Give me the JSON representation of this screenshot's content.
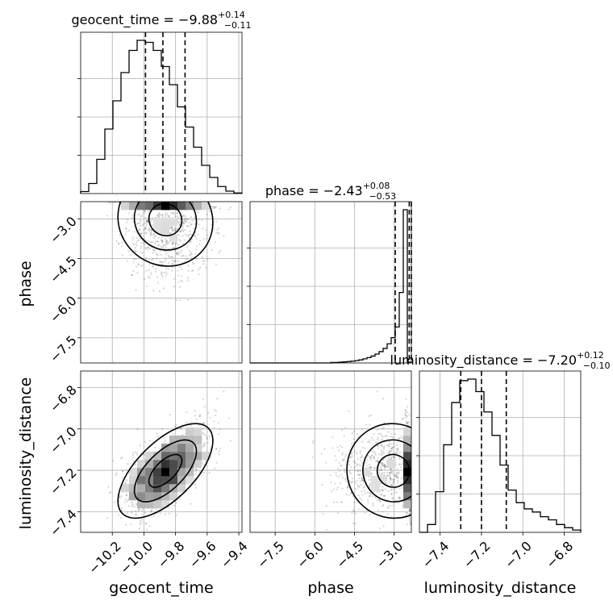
{
  "chart_data": {
    "type": "corner",
    "parameters": [
      {
        "name": "geocent_time",
        "title_prefix": "geocent_time = ",
        "median_text": "−9.88",
        "plus_text": "+0.14",
        "minus_text": "−0.11",
        "median": -9.88,
        "plus": 0.14,
        "minus": 0.11,
        "range": [
          -10.4,
          -9.38
        ],
        "ticks": [
          -10.2,
          -10.0,
          -9.8,
          -9.6,
          -9.4
        ],
        "tick_labels": [
          "−10.2",
          "−10.0",
          "−9.8",
          "−9.6",
          "−9.4"
        ],
        "hist_counts": [
          0.01,
          0.05,
          0.17,
          0.32,
          0.46,
          0.6,
          0.71,
          0.76,
          0.75,
          0.71,
          0.63,
          0.54,
          0.43,
          0.33,
          0.23,
          0.14,
          0.08,
          0.035,
          0.012,
          0.003
        ]
      },
      {
        "name": "phase",
        "title_prefix": "phase = ",
        "median_text": "−2.43",
        "plus_text": "+0.08",
        "minus_text": "−0.53",
        "median": -2.43,
        "plus": 0.08,
        "minus": 0.53,
        "range": [
          -8.45,
          -2.35
        ],
        "ticks": [
          -7.5,
          -6.0,
          -4.5,
          -3.0
        ],
        "tick_labels": [
          "−7.5",
          "−6.0",
          "−4.5",
          "−3.0"
        ],
        "hist_counts": [
          0,
          0,
          0,
          0,
          0,
          0,
          0,
          0,
          0,
          0,
          0,
          0,
          0,
          0,
          0,
          0,
          0,
          0,
          0,
          0,
          0.003,
          0.003,
          0.005,
          0.007,
          0.009,
          0.012,
          0.015,
          0.02,
          0.027,
          0.035,
          0.045,
          0.058,
          0.074,
          0.095,
          0.125,
          0.165,
          0.235,
          0.46,
          1.0,
          0.005
        ]
      },
      {
        "name": "luminosity_distance",
        "title_prefix": "luminosity_distance = ",
        "median_text": "−7.20",
        "plus_text": "+0.12",
        "minus_text": "−0.10",
        "median": -7.2,
        "plus": 0.12,
        "minus": 0.1,
        "range": [
          -7.5,
          -6.72
        ],
        "ticks": [
          -7.4,
          -7.2,
          -7.0,
          -6.8
        ],
        "tick_labels": [
          "−7.4",
          "−7.2",
          "−7.0",
          "−6.8"
        ],
        "hist_counts": [
          0.0,
          0.05,
          0.26,
          0.56,
          0.83,
          0.97,
          0.98,
          0.9,
          0.77,
          0.62,
          0.43,
          0.27,
          0.19,
          0.15,
          0.13,
          0.1,
          0.08,
          0.05,
          0.03,
          0.015
        ]
      }
    ],
    "grid": true,
    "quantile_lines": "dashed",
    "marginal_yticks": [
      0.25,
      0.5,
      0.75
    ],
    "contour_levels": [
      "0.39",
      "0.86",
      "0.99"
    ],
    "scatter_seed": 17
  }
}
